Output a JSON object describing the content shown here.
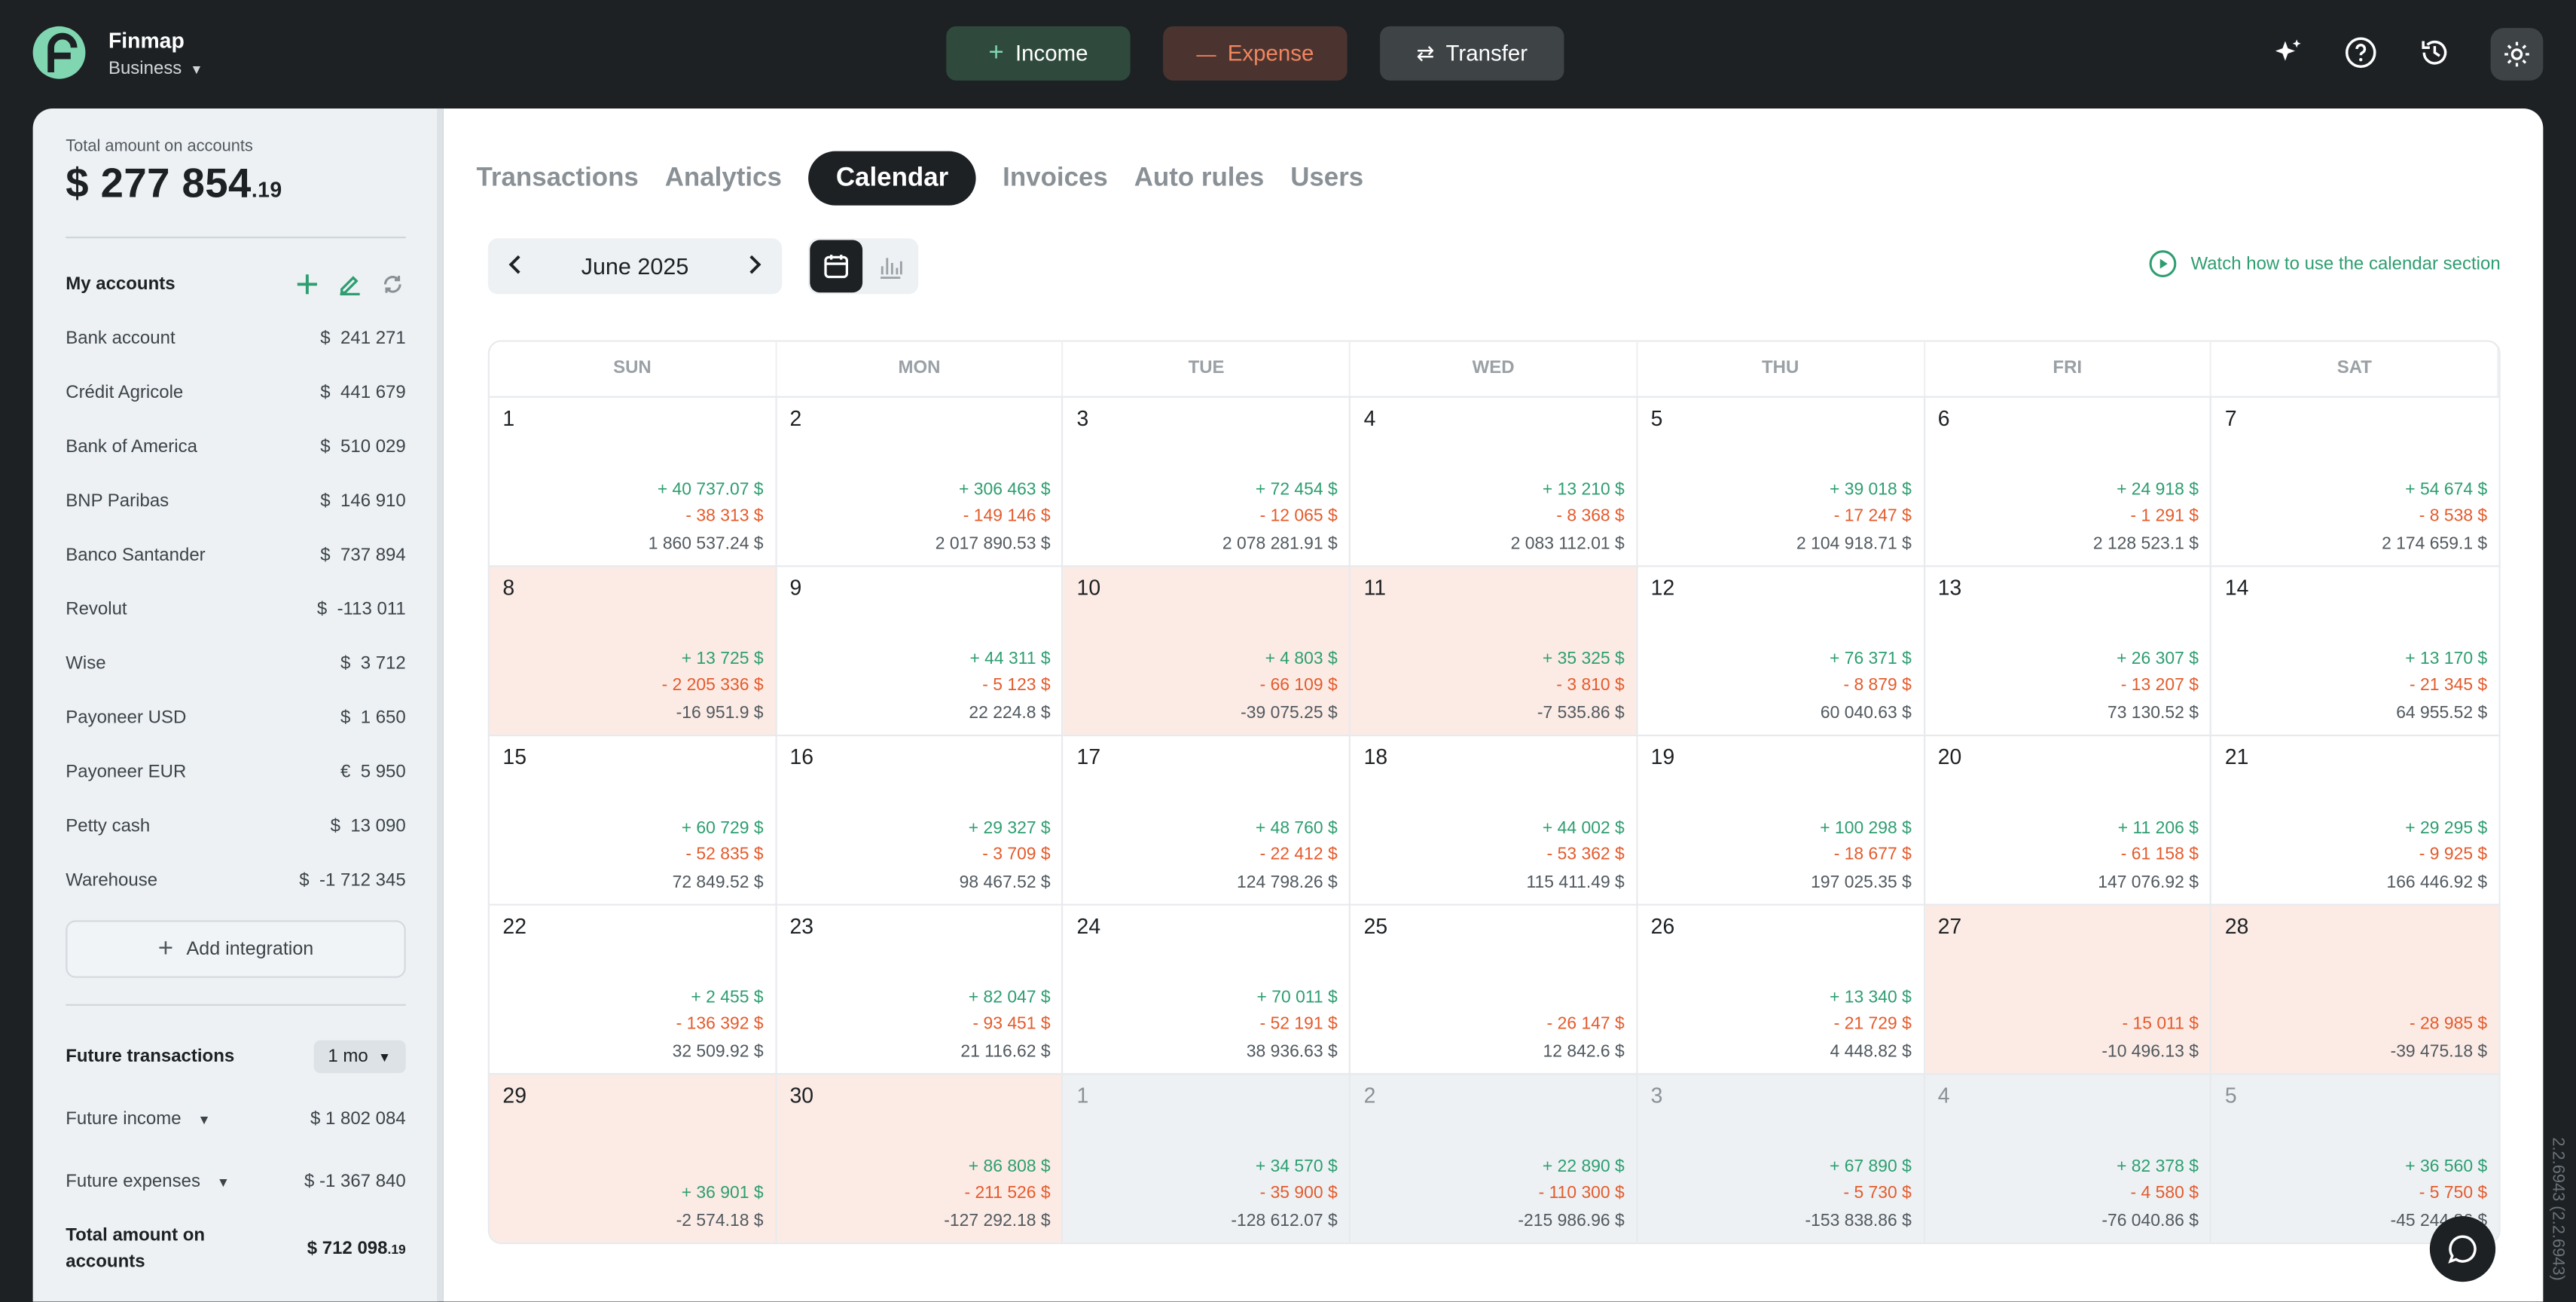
{
  "app": {
    "name": "Finmap",
    "workspace": "Business"
  },
  "top_buttons": {
    "income": "Income",
    "income_icon": "+",
    "expense": "Expense",
    "expense_icon": "—",
    "transfer": "Transfer",
    "transfer_icon": "⇄"
  },
  "colors": {
    "bg": "#1d2124",
    "income_btn": "#2f4a3c",
    "income_text": "#ffffff",
    "expense_btn": "#4b3430",
    "expense_text": "#f1855e",
    "transfer_btn": "#3e4346",
    "accent_green": "#2e9e71",
    "accent_red": "#e45b2c",
    "negative_day": "#fcebe5",
    "other_month": "#edf1f4"
  },
  "sidebar": {
    "total_label": "Total amount on accounts",
    "total_currency": "$",
    "total_main": "277 854",
    "total_cents": ".19",
    "accounts_title": "My accounts",
    "accounts": [
      {
        "name": "Bank account",
        "cur": "$",
        "value": "241 271"
      },
      {
        "name": "Crédit Agricole",
        "cur": "$",
        "value": "441 679"
      },
      {
        "name": "Bank of America",
        "cur": "$",
        "value": "510 029"
      },
      {
        "name": "BNP Paribas",
        "cur": "$",
        "value": "146 910"
      },
      {
        "name": "Banco Santander",
        "cur": "$",
        "value": "737 894"
      },
      {
        "name": "Revolut",
        "cur": "$",
        "value": "-113 011"
      },
      {
        "name": "Wise",
        "cur": "$",
        "value": "3 712"
      },
      {
        "name": "Payoneer USD",
        "cur": "$",
        "value": "1 650"
      },
      {
        "name": "Payoneer EUR",
        "cur": "€",
        "value": "5 950"
      },
      {
        "name": "Petty cash",
        "cur": "$",
        "value": "13 090"
      },
      {
        "name": "Warehouse",
        "cur": "$",
        "value": "-1 712 345"
      }
    ],
    "add_integration": "Add integration",
    "future_title": "Future transactions",
    "future_period": "1 mo",
    "future_income_label": "Future income",
    "future_income_value": "$ 1 802 084",
    "future_expenses_label": "Future expenses",
    "future_expenses_value": "$ -1 367 840",
    "total2_label": "Total amount on accounts",
    "total2_main": "$ 712 098",
    "total2_cents": ".19"
  },
  "tabs": [
    "Transactions",
    "Analytics",
    "Calendar",
    "Invoices",
    "Auto rules",
    "Users"
  ],
  "active_tab": "Calendar",
  "calendar": {
    "month": "June 2025",
    "watch_link": "Watch how to use the calendar section",
    "weekdays": [
      "SUN",
      "MON",
      "TUE",
      "WED",
      "THU",
      "FRI",
      "SAT"
    ],
    "cells": [
      {
        "day": "1",
        "inc": "+ 40 737.07  $",
        "exp": "- 38 313  $",
        "bal": "1 860 537.24  $",
        "state": "normal"
      },
      {
        "day": "2",
        "inc": "+ 306 463  $",
        "exp": "- 149 146  $",
        "bal": "2 017 890.53  $",
        "state": "normal"
      },
      {
        "day": "3",
        "inc": "+ 72 454  $",
        "exp": "- 12 065  $",
        "bal": "2 078 281.91  $",
        "state": "normal"
      },
      {
        "day": "4",
        "inc": "+ 13 210  $",
        "exp": "- 8 368  $",
        "bal": "2 083 112.01  $",
        "state": "normal"
      },
      {
        "day": "5",
        "inc": "+ 39 018  $",
        "exp": "- 17 247  $",
        "bal": "2 104 918.71  $",
        "state": "normal"
      },
      {
        "day": "6",
        "inc": "+ 24 918  $",
        "exp": "- 1 291  $",
        "bal": "2 128 523.1  $",
        "state": "normal"
      },
      {
        "day": "7",
        "inc": "+ 54 674  $",
        "exp": "- 8 538  $",
        "bal": "2 174 659.1  $",
        "state": "normal"
      },
      {
        "day": "8",
        "inc": "+ 13 725  $",
        "exp": "- 2 205 336  $",
        "bal": "-16 951.9  $",
        "state": "neg"
      },
      {
        "day": "9",
        "inc": "+ 44 311  $",
        "exp": "- 5 123  $",
        "bal": "22 224.8  $",
        "state": "normal"
      },
      {
        "day": "10",
        "inc": "+ 4 803  $",
        "exp": "- 66 109  $",
        "bal": "-39 075.25  $",
        "state": "neg"
      },
      {
        "day": "11",
        "inc": "+ 35 325  $",
        "exp": "- 3 810  $",
        "bal": "-7 535.86  $",
        "state": "neg"
      },
      {
        "day": "12",
        "inc": "+ 76 371  $",
        "exp": "- 8 879  $",
        "bal": "60 040.63  $",
        "state": "normal"
      },
      {
        "day": "13",
        "inc": "+ 26 307  $",
        "exp": "- 13 207  $",
        "bal": "73 130.52  $",
        "state": "normal"
      },
      {
        "day": "14",
        "inc": "+ 13 170  $",
        "exp": "- 21 345  $",
        "bal": "64 955.52  $",
        "state": "normal"
      },
      {
        "day": "15",
        "inc": "+ 60 729  $",
        "exp": "- 52 835  $",
        "bal": "72 849.52  $",
        "state": "normal"
      },
      {
        "day": "16",
        "inc": "+ 29 327  $",
        "exp": "- 3 709  $",
        "bal": "98 467.52  $",
        "state": "normal"
      },
      {
        "day": "17",
        "inc": "+ 48 760  $",
        "exp": "- 22 412  $",
        "bal": "124 798.26  $",
        "state": "normal"
      },
      {
        "day": "18",
        "inc": "+ 44 002  $",
        "exp": "- 53 362  $",
        "bal": "115 411.49  $",
        "state": "normal"
      },
      {
        "day": "19",
        "inc": "+ 100 298  $",
        "exp": "- 18 677  $",
        "bal": "197 025.35  $",
        "state": "normal"
      },
      {
        "day": "20",
        "inc": "+ 11 206  $",
        "exp": "- 61 158  $",
        "bal": "147 076.92  $",
        "state": "normal"
      },
      {
        "day": "21",
        "inc": "+ 29 295  $",
        "exp": "- 9 925  $",
        "bal": "166 446.92  $",
        "state": "normal"
      },
      {
        "day": "22",
        "inc": "+ 2 455  $",
        "exp": "- 136 392  $",
        "bal": "32 509.92  $",
        "state": "normal"
      },
      {
        "day": "23",
        "inc": "+ 82 047  $",
        "exp": "- 93 451  $",
        "bal": "21 116.62  $",
        "state": "normal"
      },
      {
        "day": "24",
        "inc": "+ 70 011  $",
        "exp": "- 52 191  $",
        "bal": "38 936.63  $",
        "state": "normal"
      },
      {
        "day": "25",
        "inc": "",
        "exp": "- 26 147  $",
        "bal": "12 842.6  $",
        "state": "normal"
      },
      {
        "day": "26",
        "inc": "+ 13 340  $",
        "exp": "- 21 729  $",
        "bal": "4 448.82  $",
        "state": "normal"
      },
      {
        "day": "27",
        "inc": "",
        "exp": "- 15 011  $",
        "bal": "-10 496.13  $",
        "state": "neg"
      },
      {
        "day": "28",
        "inc": "",
        "exp": "- 28 985  $",
        "bal": "-39 475.18  $",
        "state": "neg"
      },
      {
        "day": "29",
        "inc": "",
        "exp": "+ 36 901  $",
        "bal": "-2 574.18  $",
        "state": "neg",
        "exp_green": true
      },
      {
        "day": "30",
        "inc": "+ 86 808  $",
        "exp": "- 211 526  $",
        "bal": "-127 292.18  $",
        "state": "neg"
      },
      {
        "day": "1",
        "inc": "+ 34 570  $",
        "exp": "- 35 900  $",
        "bal": "-128 612.07  $",
        "state": "oth"
      },
      {
        "day": "2",
        "inc": "+ 22 890  $",
        "exp": "- 110 300  $",
        "bal": "-215 986.96  $",
        "state": "oth"
      },
      {
        "day": "3",
        "inc": "+ 67 890  $",
        "exp": "- 5 730  $",
        "bal": "-153 838.86  $",
        "state": "oth"
      },
      {
        "day": "4",
        "inc": "+ 82 378  $",
        "exp": "- 4 580  $",
        "bal": "-76 040.86  $",
        "state": "oth"
      },
      {
        "day": "5",
        "inc": "+ 36 560  $",
        "exp": "- 5 750  $",
        "bal": "-45 244.86  $",
        "state": "oth"
      }
    ]
  },
  "version": "2.2.6943 (2.2.6943)"
}
